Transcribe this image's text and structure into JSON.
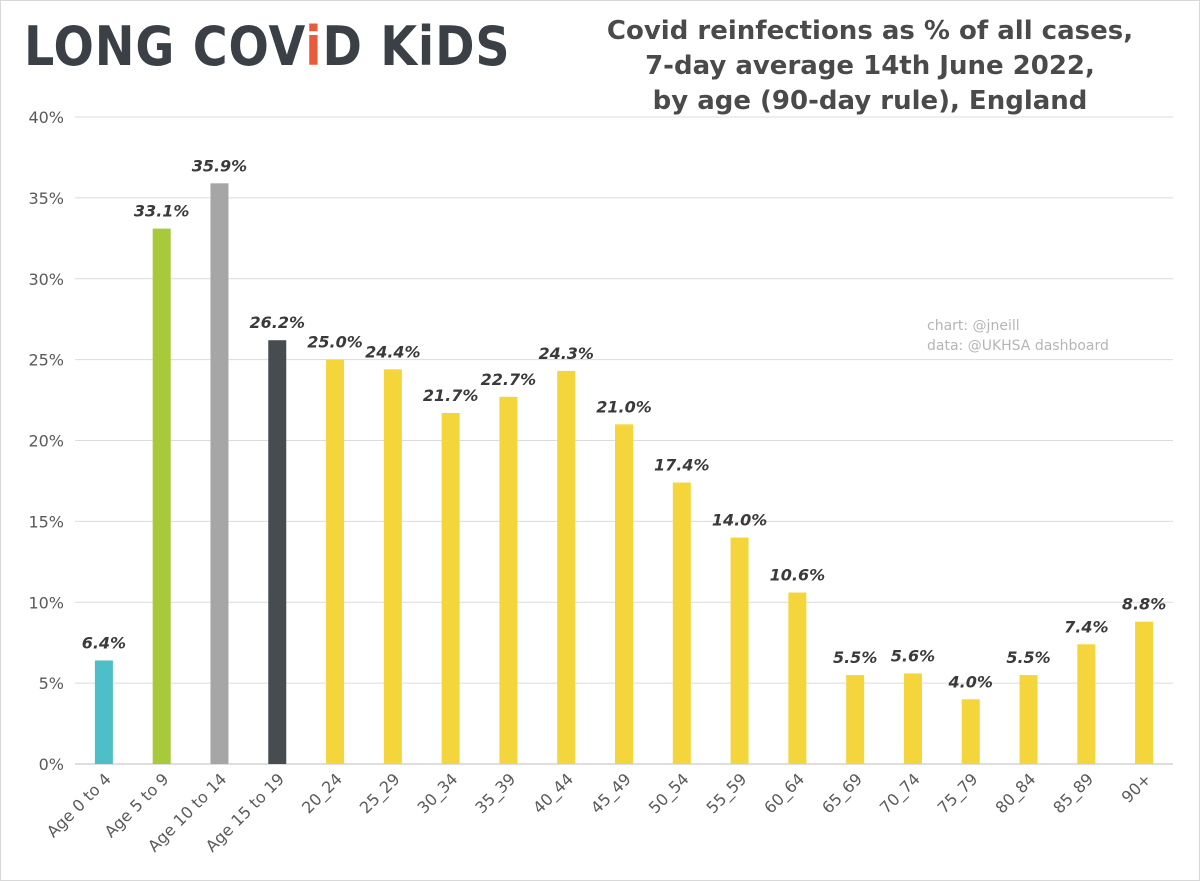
{
  "logo": {
    "text_main": "LONG COV",
    "text_accent": "i",
    "text_tail": "D KiDS"
  },
  "title": {
    "line1": "Covid reinfections as % of all cases,",
    "line2": "7-day average 14th June 2022,",
    "line3": "by age (90-day rule), England"
  },
  "credit": {
    "chart": "chart: @jneill",
    "data": "data: @UKHSA dashboard"
  },
  "chart_data": {
    "type": "bar",
    "title": "Covid reinfections as % of all cases, 7-day average 14th June 2022, by age (90-day rule), England",
    "xlabel": "",
    "ylabel": "",
    "ylim": [
      0,
      40
    ],
    "yticks": [
      0,
      5,
      10,
      15,
      20,
      25,
      30,
      35,
      40
    ],
    "ytick_labels": [
      "0%",
      "5%",
      "10%",
      "15%",
      "20%",
      "25%",
      "30%",
      "35%",
      "40%"
    ],
    "grid": true,
    "categories": [
      "Age 0 to 4",
      "Age 5 to 9",
      "Age 10 to 14",
      "Age 15 to 19",
      "20_24",
      "25_29",
      "30_34",
      "35_39",
      "40_44",
      "45_49",
      "50_54",
      "55_59",
      "60_64",
      "65_69",
      "70_74",
      "75_79",
      "80_84",
      "85_89",
      "90+"
    ],
    "values": [
      6.4,
      33.1,
      35.9,
      26.2,
      25.0,
      24.4,
      21.7,
      22.7,
      24.3,
      21.0,
      17.4,
      14.0,
      10.6,
      5.5,
      5.6,
      4.0,
      5.5,
      7.4,
      8.8
    ],
    "data_labels": [
      "6.4%",
      "33.1%",
      "35.9%",
      "26.2%",
      "25.0%",
      "24.4%",
      "21.7%",
      "22.7%",
      "24.3%",
      "21.0%",
      "17.4%",
      "14.0%",
      "10.6%",
      "5.5%",
      "5.6%",
      "4.0%",
      "5.5%",
      "7.4%",
      "8.8%"
    ],
    "colors": [
      "#4dbfc9",
      "#a8c93a",
      "#a6a6a6",
      "#474c50",
      "#f4d63c",
      "#f4d63c",
      "#f4d63c",
      "#f4d63c",
      "#f4d63c",
      "#f4d63c",
      "#f4d63c",
      "#f4d63c",
      "#f4d63c",
      "#f4d63c",
      "#f4d63c",
      "#f4d63c",
      "#f4d63c",
      "#f4d63c",
      "#f4d63c"
    ]
  }
}
